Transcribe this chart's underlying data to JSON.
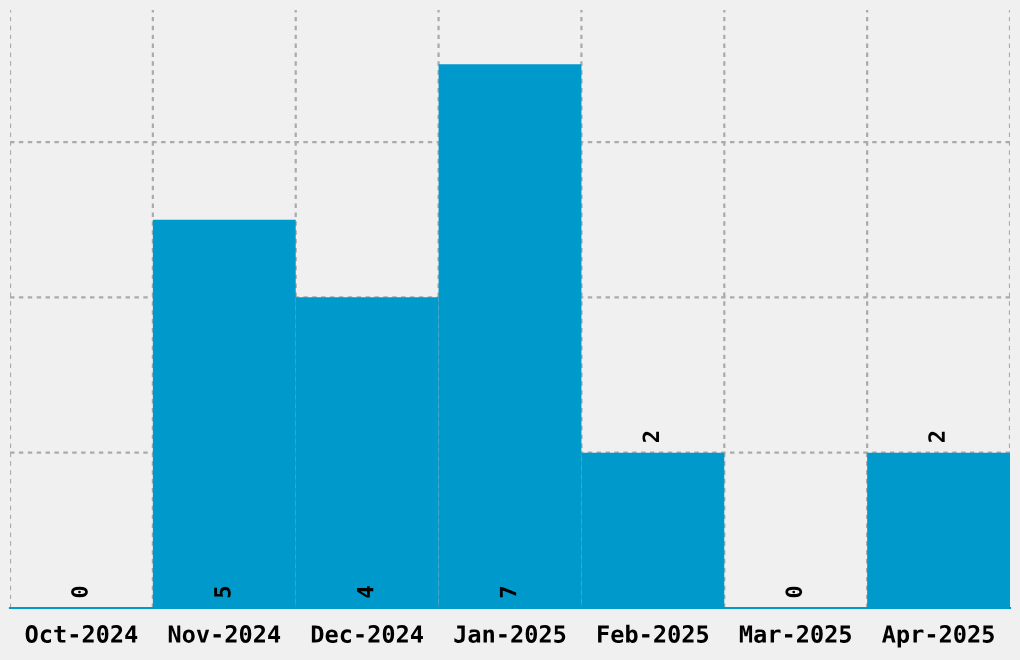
{
  "chart_data": {
    "type": "bar",
    "categories": [
      "Oct-2024",
      "Nov-2024",
      "Dec-2024",
      "Jan-2025",
      "Feb-2025",
      "Mar-2025",
      "Apr-2025"
    ],
    "values": [
      0,
      5,
      4,
      7,
      2,
      0,
      2
    ],
    "color": "#0099cc",
    "data_labels": true,
    "ylim": [
      0,
      7.7
    ],
    "yticks": [
      {
        "value": 2,
        "label": null
      },
      {
        "value": 4,
        "label": null
      },
      {
        "value": 6,
        "label": null
      }
    ],
    "tick_labels": "x",
    "grid": true
  }
}
